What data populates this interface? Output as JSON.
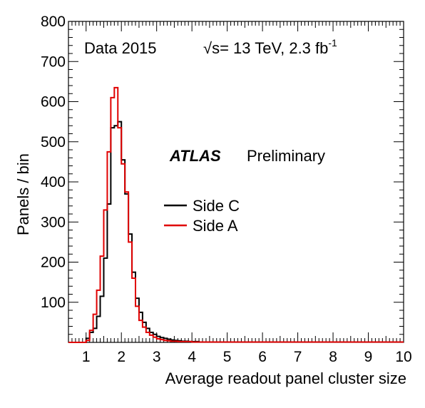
{
  "chart_data": {
    "type": "histogram",
    "xlabel": "Average readout panel cluster size",
    "ylabel": "Panels / bin",
    "xlim": [
      0.5,
      10
    ],
    "ylim": [
      0,
      800
    ],
    "x_ticks": [
      1,
      2,
      3,
      4,
      5,
      6,
      7,
      8,
      9,
      10
    ],
    "y_ticks": [
      100,
      200,
      300,
      400,
      500,
      600,
      700,
      800
    ],
    "grid": false,
    "legend": "center",
    "annotations": {
      "data_label": "Data 2015",
      "energy_label_prefix": "√s= 13 TeV, 2.3 fb",
      "energy_label_sup": "-1",
      "atlas_label": "ATLAS",
      "atlas_suffix": "Preliminary"
    },
    "bin_edges_start": 0.5,
    "bin_width": 0.1,
    "series": [
      {
        "name": "Side C",
        "color": "#000000",
        "values": [
          0,
          0,
          0,
          0,
          0,
          10,
          25,
          35,
          65,
          115,
          210,
          345,
          535,
          540,
          550,
          455,
          370,
          270,
          175,
          110,
          75,
          50,
          35,
          25,
          20,
          15,
          12,
          10,
          8,
          6,
          5,
          4,
          3,
          3,
          2,
          2,
          2,
          1,
          1,
          1,
          1,
          1,
          1,
          1,
          1,
          1,
          1,
          1,
          1,
          1,
          1,
          1,
          1,
          1,
          1,
          1,
          1,
          1,
          1,
          1,
          1,
          1,
          1,
          1,
          1,
          1,
          1,
          1,
          1,
          1,
          1,
          1,
          1,
          1,
          1,
          1,
          1,
          1,
          1,
          1,
          1,
          1,
          1,
          1,
          1,
          1,
          1,
          1,
          1,
          1,
          1,
          1,
          1,
          1,
          1
        ]
      },
      {
        "name": "Side A",
        "color": "#e00000",
        "values": [
          0,
          0,
          0,
          0,
          0,
          5,
          30,
          70,
          130,
          215,
          330,
          475,
          610,
          635,
          535,
          445,
          375,
          250,
          160,
          90,
          55,
          38,
          25,
          18,
          13,
          9,
          7,
          5,
          4,
          3,
          3,
          2,
          2,
          2,
          2,
          1,
          1,
          1,
          1,
          1,
          1,
          1,
          1,
          1,
          1,
          1,
          1,
          1,
          1,
          1,
          1,
          1,
          1,
          1,
          1,
          1,
          1,
          1,
          1,
          1,
          1,
          1,
          1,
          1,
          1,
          1,
          1,
          1,
          1,
          1,
          1,
          1,
          1,
          1,
          1,
          1,
          1,
          1,
          1,
          1,
          1,
          1,
          1,
          1,
          1,
          1,
          1,
          1,
          1,
          1,
          1,
          1,
          1,
          1,
          1
        ]
      }
    ]
  }
}
